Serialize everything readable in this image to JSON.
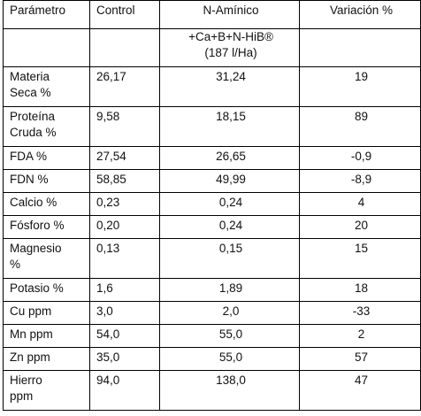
{
  "table": {
    "headers": [
      "Parámetro",
      "Control",
      "N-Amínico",
      "Variación %"
    ],
    "treatment_line1": "+Ca+B+N-HiB®",
    "treatment_line2": "(187 l/Ha)",
    "rows": [
      {
        "param": [
          "Materia",
          "Seca %"
        ],
        "control": "26,17",
        "amino": "31,24",
        "var": "19"
      },
      {
        "param": [
          "Proteína",
          "Cruda %"
        ],
        "control": "9,58",
        "amino": "18,15",
        "var": "89"
      },
      {
        "param": [
          "FDA %"
        ],
        "control": "27,54",
        "amino": "26,65",
        "var": "-0,9"
      },
      {
        "param": [
          "FDN %"
        ],
        "control": "58,85",
        "amino": "49,99",
        "var": "-8,9"
      },
      {
        "param": [
          "Calcio %"
        ],
        "control": "0,23",
        "amino": "0,24",
        "var": "4"
      },
      {
        "param": [
          "Fósforo %"
        ],
        "control": "0,20",
        "amino": "0,24",
        "var": "20"
      },
      {
        "param": [
          "Magnesio",
          "%"
        ],
        "control": "0,13",
        "amino": "0,15",
        "var": "15"
      },
      {
        "param": [
          "Potasio %"
        ],
        "control": "1,6",
        "amino": "1,89",
        "var": "18"
      },
      {
        "param": [
          "Cu ppm"
        ],
        "control": "3,0",
        "amino": "2,0",
        "var": "-33"
      },
      {
        "param": [
          "Mn ppm"
        ],
        "control": "54,0",
        "amino": "55,0",
        "var": "2"
      },
      {
        "param": [
          "Zn ppm"
        ],
        "control": "35,0",
        "amino": "55,0",
        "var": "57"
      },
      {
        "param": [
          "Hierro",
          "ppm"
        ],
        "control": "94,0",
        "amino": "138,0",
        "var": "47"
      }
    ]
  }
}
